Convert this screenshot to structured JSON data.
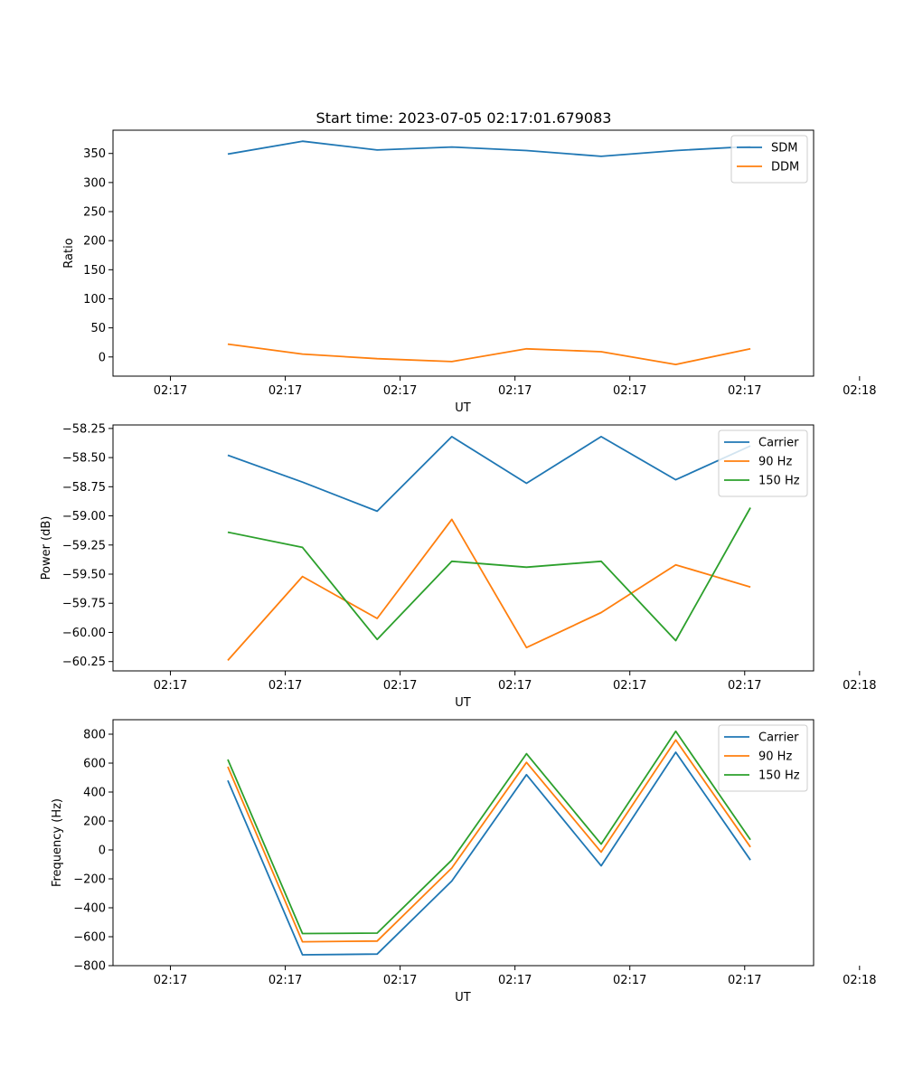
{
  "figure_title": "Start time: 2023-07-05 02:17:01.679083",
  "colors": {
    "series1": "#1f77b4",
    "series2": "#ff7f0e",
    "series3": "#2ca02c"
  },
  "chart_data": [
    {
      "type": "line",
      "title": "Start time: 2023-07-05 02:17:01.679083",
      "xlabel": "UT",
      "ylabel": "Ratio",
      "xlim": [
        -0.5,
        5.6
      ],
      "ylim": [
        -33,
        390
      ],
      "x_ticks": [
        0,
        1,
        2,
        3,
        4,
        5,
        6
      ],
      "x_tick_labels": [
        "02:17",
        "02:17",
        "02:17",
        "02:17",
        "02:17",
        "02:17",
        "02:18"
      ],
      "y_ticks": [
        0,
        50,
        100,
        150,
        200,
        250,
        300,
        350
      ],
      "y_tick_labels": [
        "0",
        "50",
        "100",
        "150",
        "200",
        "250",
        "300",
        "350"
      ],
      "x": [
        0.5,
        1.15,
        1.8,
        2.45,
        3.1,
        3.75,
        4.4,
        5.05
      ],
      "series": [
        {
          "name": "SDM",
          "color": "#1f77b4",
          "values": [
            349,
            371,
            356,
            361,
            355,
            345,
            355,
            362
          ]
        },
        {
          "name": "DDM",
          "color": "#ff7f0e",
          "values": [
            22,
            5,
            -3,
            -8,
            14,
            9,
            -13,
            14
          ]
        }
      ],
      "legend": "top-right"
    },
    {
      "type": "line",
      "title": "",
      "xlabel": "UT",
      "ylabel": "Power (dB)",
      "xlim": [
        -0.5,
        5.6
      ],
      "ylim": [
        -60.33,
        -58.22
      ],
      "x_ticks": [
        0,
        1,
        2,
        3,
        4,
        5,
        6
      ],
      "x_tick_labels": [
        "02:17",
        "02:17",
        "02:17",
        "02:17",
        "02:17",
        "02:17",
        "02:18"
      ],
      "y_ticks": [
        -60.25,
        -60.0,
        -59.75,
        -59.5,
        -59.25,
        -59.0,
        -58.75,
        -58.5,
        -58.25
      ],
      "y_tick_labels": [
        "−60.25",
        "−60.00",
        "−59.75",
        "−59.50",
        "−59.25",
        "−59.00",
        "−58.75",
        "−58.50",
        "−58.25"
      ],
      "x": [
        0.5,
        1.15,
        1.8,
        2.45,
        3.1,
        3.75,
        4.4,
        5.05
      ],
      "series": [
        {
          "name": "Carrier",
          "color": "#1f77b4",
          "values": [
            -58.48,
            -58.71,
            -58.96,
            -58.32,
            -58.72,
            -58.32,
            -58.69,
            -58.4
          ]
        },
        {
          "name": "90 Hz",
          "color": "#ff7f0e",
          "values": [
            -60.24,
            -59.52,
            -59.88,
            -59.03,
            -60.13,
            -59.83,
            -59.42,
            -59.61
          ]
        },
        {
          "name": "150 Hz",
          "color": "#2ca02c",
          "values": [
            -59.14,
            -59.27,
            -60.06,
            -59.39,
            -59.44,
            -59.39,
            -60.07,
            -58.93
          ]
        }
      ],
      "legend": "top-right"
    },
    {
      "type": "line",
      "title": "",
      "xlabel": "UT",
      "ylabel": "Frequency (Hz)",
      "xlim": [
        -0.5,
        5.6
      ],
      "ylim": [
        -800,
        900
      ],
      "x_ticks": [
        0,
        1,
        2,
        3,
        4,
        5,
        6
      ],
      "x_tick_labels": [
        "02:17",
        "02:17",
        "02:17",
        "02:17",
        "02:17",
        "02:17",
        "02:18"
      ],
      "y_ticks": [
        -800,
        -600,
        -400,
        -200,
        0,
        200,
        400,
        600,
        800
      ],
      "y_tick_labels": [
        "−800",
        "−600",
        "−400",
        "−200",
        "0",
        "200",
        "400",
        "600",
        "800"
      ],
      "x": [
        0.5,
        1.15,
        1.8,
        2.45,
        3.1,
        3.75,
        4.4,
        5.05
      ],
      "series": [
        {
          "name": "Carrier",
          "color": "#1f77b4",
          "values": [
            480,
            -725,
            -720,
            -215,
            520,
            -110,
            675,
            -70
          ]
        },
        {
          "name": "90 Hz",
          "color": "#ff7f0e",
          "values": [
            575,
            -635,
            -630,
            -125,
            605,
            -15,
            760,
            20
          ]
        },
        {
          "name": "150 Hz",
          "color": "#2ca02c",
          "values": [
            625,
            -578,
            -575,
            -70,
            665,
            40,
            820,
            70
          ]
        }
      ],
      "legend": "top-right"
    }
  ]
}
